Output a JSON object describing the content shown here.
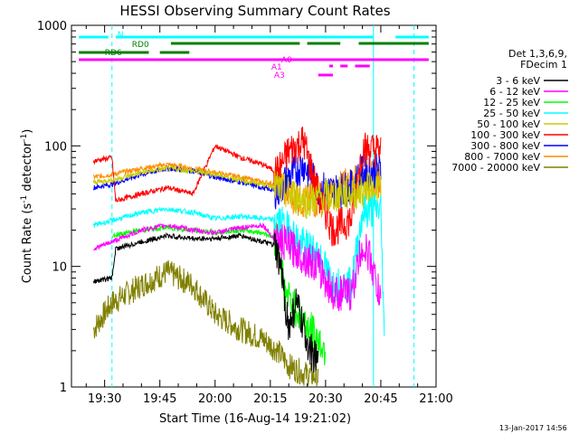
{
  "chart_data": {
    "type": "line",
    "title": "HESSI Observing Summary Count Rates",
    "xlabel": "Start Time (16-Aug-14 19:21:02)",
    "ylabel_main": "Count Rate (s",
    "ylabel_sup1": "-1",
    "ylabel_mid": " detector",
    "ylabel_sup2": "-1",
    "ylabel_end": ")",
    "footer": "13-Jan-2017 14:56",
    "x_range_min": [
      19.35,
      21.0
    ],
    "y_range": [
      1,
      1000
    ],
    "yscale": "log",
    "x_ticks": [
      {
        "label": "19:30",
        "min": 1170
      },
      {
        "label": "19:45",
        "min": 1185
      },
      {
        "label": "20:00",
        "min": 1200
      },
      {
        "label": "20:15",
        "min": 1215
      },
      {
        "label": "20:30",
        "min": 1230
      },
      {
        "label": "20:45",
        "min": 1245
      },
      {
        "label": "21:00",
        "min": 1260
      }
    ],
    "y_ticks": [
      {
        "label": "1",
        "v": 1
      },
      {
        "label": "10",
        "v": 10
      },
      {
        "label": "100",
        "v": 100
      },
      {
        "label": "1000",
        "v": 1000
      }
    ],
    "legend_header": [
      "Det 1,3,6,9,",
      "FDecim 1"
    ],
    "series": [
      {
        "name": "3 - 6 keV",
        "color": "#000000",
        "values": [
          [
            1167,
            7.5
          ],
          [
            1172,
            8
          ],
          [
            1173,
            14
          ],
          [
            1180,
            16
          ],
          [
            1187,
            18
          ],
          [
            1194,
            17
          ],
          [
            1200,
            17
          ],
          [
            1207,
            18
          ],
          [
            1213,
            16
          ],
          [
            1216,
            15
          ],
          [
            1218,
            9
          ],
          [
            1220,
            3
          ],
          [
            1222,
            5
          ],
          [
            1224,
            3
          ],
          [
            1226,
            2
          ],
          [
            1228,
            1.5
          ]
        ]
      },
      {
        "name": "6 - 12 keV",
        "color": "#ff00ff",
        "values": [
          [
            1167,
            14
          ],
          [
            1172,
            16
          ],
          [
            1180,
            20
          ],
          [
            1187,
            22
          ],
          [
            1194,
            20
          ],
          [
            1200,
            19
          ],
          [
            1207,
            21
          ],
          [
            1213,
            22
          ],
          [
            1216,
            17
          ],
          [
            1220,
            15
          ],
          [
            1224,
            12
          ],
          [
            1228,
            10
          ],
          [
            1232,
            6
          ],
          [
            1237,
            6
          ],
          [
            1240,
            15
          ],
          [
            1242,
            12
          ],
          [
            1245,
            5
          ]
        ]
      },
      {
        "name": "12 - 25 keV",
        "color": "#00ff00",
        "values": [
          [
            1172,
            18
          ],
          [
            1180,
            20
          ],
          [
            1187,
            21
          ],
          [
            1194,
            20
          ],
          [
            1200,
            19
          ],
          [
            1207,
            20
          ],
          [
            1213,
            19
          ],
          [
            1217,
            17
          ],
          [
            1219,
            6
          ],
          [
            1223,
            4
          ],
          [
            1226,
            3
          ],
          [
            1230,
            2
          ]
        ]
      },
      {
        "name": "25 - 50 keV",
        "color": "#00ffff",
        "values": [
          [
            1167,
            22
          ],
          [
            1172,
            24
          ],
          [
            1180,
            28
          ],
          [
            1187,
            30
          ],
          [
            1194,
            28
          ],
          [
            1200,
            25
          ],
          [
            1207,
            26
          ],
          [
            1213,
            25
          ],
          [
            1217,
            24
          ],
          [
            1220,
            20
          ],
          [
            1224,
            15
          ],
          [
            1228,
            13
          ],
          [
            1232,
            7
          ],
          [
            1237,
            7
          ],
          [
            1240,
            28
          ],
          [
            1245,
            30
          ],
          [
            1246,
            2
          ]
        ]
      },
      {
        "name": "50 - 100 keV",
        "color": "#cccc00",
        "values": [
          [
            1167,
            50
          ],
          [
            1172,
            52
          ],
          [
            1180,
            60
          ],
          [
            1187,
            65
          ],
          [
            1194,
            62
          ],
          [
            1200,
            58
          ],
          [
            1207,
            52
          ],
          [
            1213,
            48
          ],
          [
            1217,
            45
          ],
          [
            1220,
            40
          ],
          [
            1225,
            35
          ],
          [
            1230,
            38
          ],
          [
            1235,
            40
          ],
          [
            1240,
            42
          ],
          [
            1245,
            45
          ]
        ]
      },
      {
        "name": "100 - 300 keV",
        "color": "#ff0000",
        "values": [
          [
            1167,
            75
          ],
          [
            1172,
            80
          ],
          [
            1173,
            35
          ],
          [
            1180,
            40
          ],
          [
            1187,
            45
          ],
          [
            1194,
            40
          ],
          [
            1200,
            100
          ],
          [
            1207,
            80
          ],
          [
            1213,
            70
          ],
          [
            1217,
            60
          ],
          [
            1220,
            90
          ],
          [
            1224,
            110
          ],
          [
            1228,
            40
          ],
          [
            1232,
            20
          ],
          [
            1237,
            25
          ],
          [
            1240,
            95
          ],
          [
            1245,
            92
          ]
        ]
      },
      {
        "name": "300 - 800 keV",
        "color": "#0000ff",
        "values": [
          [
            1167,
            45
          ],
          [
            1172,
            48
          ],
          [
            1180,
            58
          ],
          [
            1187,
            65
          ],
          [
            1194,
            62
          ],
          [
            1200,
            55
          ],
          [
            1207,
            50
          ],
          [
            1213,
            45
          ],
          [
            1217,
            42
          ],
          [
            1220,
            55
          ],
          [
            1224,
            70
          ],
          [
            1228,
            45
          ],
          [
            1232,
            42
          ],
          [
            1237,
            45
          ],
          [
            1240,
            60
          ],
          [
            1245,
            62
          ]
        ]
      },
      {
        "name": "800 - 7000 keV",
        "color": "#ff8c00",
        "values": [
          [
            1167,
            55
          ],
          [
            1172,
            58
          ],
          [
            1180,
            65
          ],
          [
            1187,
            70
          ],
          [
            1194,
            65
          ],
          [
            1200,
            60
          ],
          [
            1207,
            55
          ],
          [
            1213,
            50
          ],
          [
            1217,
            48
          ],
          [
            1220,
            40
          ],
          [
            1224,
            35
          ],
          [
            1228,
            35
          ],
          [
            1232,
            40
          ],
          [
            1237,
            50
          ],
          [
            1240,
            55
          ],
          [
            1245,
            52
          ]
        ]
      },
      {
        "name": "7000 - 20000 keV",
        "color": "#808000",
        "values": [
          [
            1167,
            3
          ],
          [
            1172,
            5
          ],
          [
            1180,
            7
          ],
          [
            1187,
            9
          ],
          [
            1194,
            7
          ],
          [
            1200,
            4
          ],
          [
            1207,
            3
          ],
          [
            1213,
            2.5
          ],
          [
            1217,
            2
          ],
          [
            1220,
            1.5
          ],
          [
            1224,
            1.3
          ],
          [
            1228,
            1.2
          ]
        ]
      }
    ],
    "flags": [
      {
        "label": "N",
        "color": "#00ffff",
        "segments": [
          [
            1163,
            1171
          ],
          [
            1173,
            1243
          ],
          [
            1249,
            1258
          ]
        ]
      },
      {
        "label": "RD0",
        "color": "#008000",
        "segments": [
          [
            1188,
            1223
          ],
          [
            1225,
            1234
          ],
          [
            1239,
            1258
          ]
        ]
      },
      {
        "label": "RD6",
        "color": "#008000",
        "segments": [
          [
            1163,
            1182
          ],
          [
            1185,
            1193
          ]
        ]
      },
      {
        "label": "A0",
        "color": "#ff00ff",
        "segments": [
          [
            1163,
            1258
          ]
        ]
      },
      {
        "label": "A1",
        "color": "#ff00ff",
        "segments": [
          [
            1231,
            1232
          ],
          [
            1234,
            1236
          ],
          [
            1238,
            1242
          ]
        ]
      },
      {
        "label": "A3",
        "color": "#ff00ff",
        "segments": [
          [
            1228,
            1232
          ]
        ]
      }
    ],
    "vlines_dashed": [
      1172,
      1254
    ],
    "vlines_solid": [
      1243
    ]
  }
}
